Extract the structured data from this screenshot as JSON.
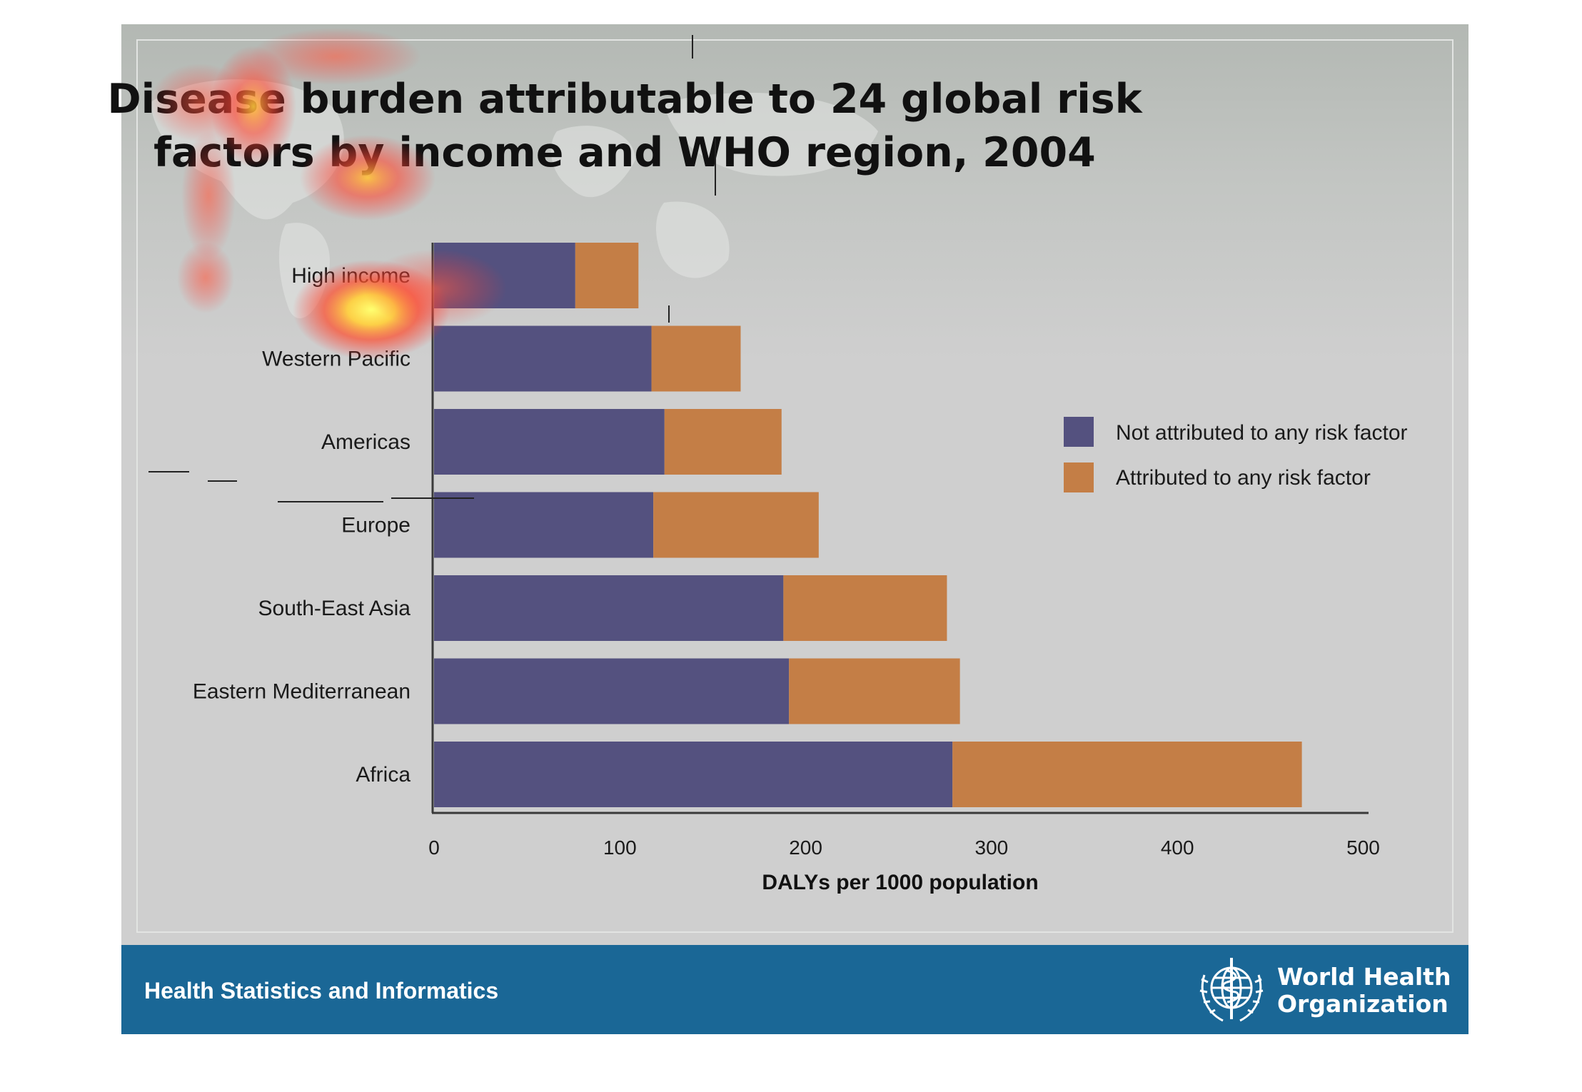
{
  "title_lines": [
    "Disease burden attributable to 24 global risk",
    "factors by income and WHO region, 2004"
  ],
  "footer": {
    "left_text": "Health Statistics and Informatics",
    "logo_line1": "World Health",
    "logo_line2": "Organization"
  },
  "colors": {
    "not_attributed": "#54517f",
    "attributed": "#c47e46",
    "footer_bar": "#1a6796",
    "slide_background": "#cfcfcf"
  },
  "chart_data": {
    "type": "bar",
    "orientation": "horizontal",
    "stacked": true,
    "title": "Disease burden attributable to 24 global risk factors by income and WHO region, 2004",
    "categories": [
      "High income",
      "Western Pacific",
      "Americas",
      "Europe",
      "South-East Asia",
      "Eastern Mediterranean",
      "Africa"
    ],
    "series": [
      {
        "name": "Not attributed to any risk factor",
        "color": "#54517f",
        "values": [
          76,
          117,
          124,
          118,
          188,
          191,
          279
        ]
      },
      {
        "name": "Attributed to any risk factor",
        "color": "#c47e46",
        "values": [
          34,
          48,
          63,
          89,
          88,
          92,
          188
        ]
      }
    ],
    "xlabel": "DALYs per 1000 population",
    "ylabel": "",
    "xlim": [
      0,
      505
    ],
    "xticks": [
      0,
      100,
      200,
      300,
      400,
      500
    ],
    "grid": false,
    "legend_position": "right"
  }
}
